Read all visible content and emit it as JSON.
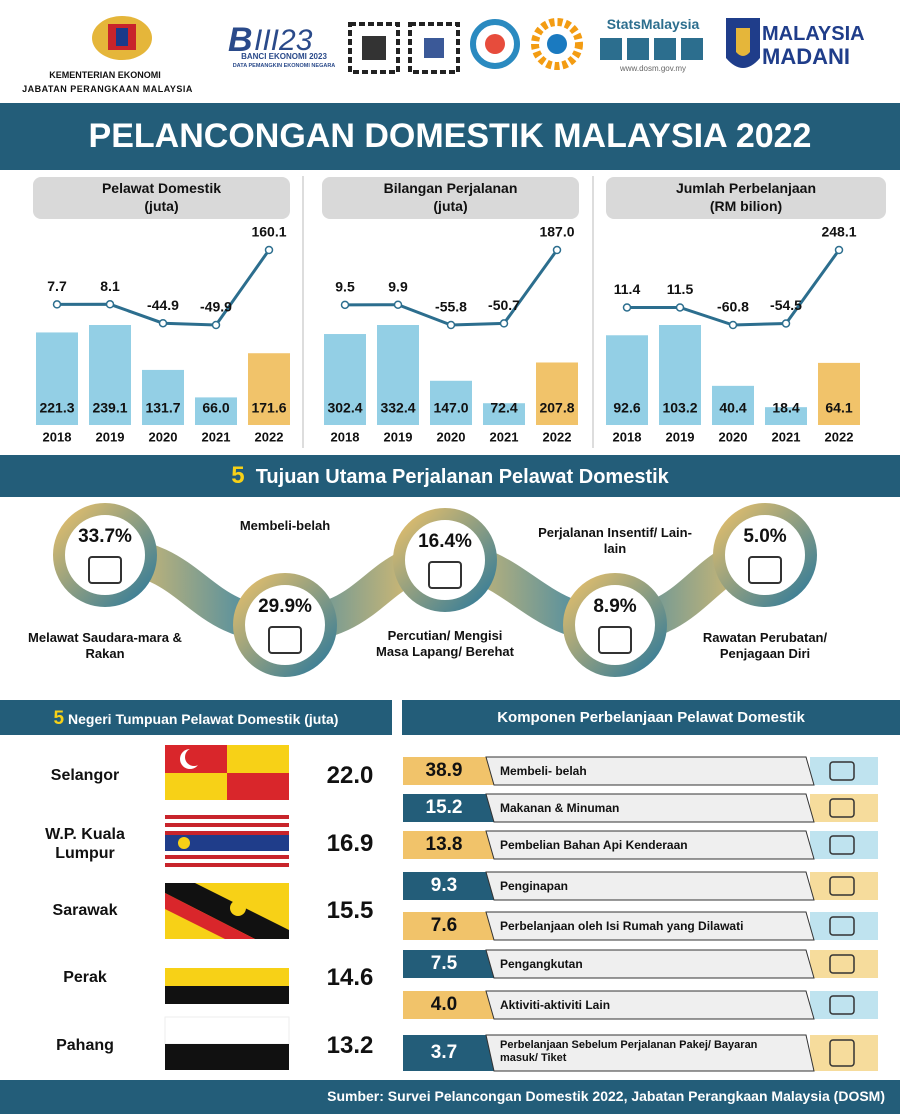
{
  "header": {
    "ministry": "KEMENTERIAN EKONOMI",
    "department": "JABATAN PERANGKAAN MALAYSIA",
    "census": "BANCI EKONOMI 2023",
    "census_tagline": "DATA PEMANGKIN EKONOMI NEGARA",
    "stats_brand": "StatsMalaysia",
    "website": "www.dosm.gov.my",
    "madani_line1": "MALAYSIA",
    "madani_line2": "MADANI"
  },
  "title": "PELANCONGAN DOMESTIK MALAYSIA 2022",
  "chart_data": [
    {
      "type": "bar_line",
      "title": "Pelawat Domestik",
      "subtitle": "(juta)",
      "categories": [
        "2018",
        "2019",
        "2020",
        "2021",
        "2022"
      ],
      "series": [
        {
          "type": "bar",
          "colors": [
            "#93cfe5",
            "#93cfe5",
            "#93cfe5",
            "#93cfe5",
            "#f1c36a"
          ],
          "values": [
            221.3,
            239.1,
            131.7,
            66.0,
            171.6
          ],
          "value_labels": [
            "221.3",
            "239.1",
            "131.7",
            "66.0",
            "171.6"
          ]
        },
        {
          "type": "line",
          "color": "#2c6e8e",
          "values": [
            7.7,
            8.1,
            -44.9,
            -49.9,
            160.1
          ],
          "value_labels": [
            "7.7",
            "8.1",
            "-44.9",
            "-49.9",
            "160.1"
          ]
        }
      ]
    },
    {
      "type": "bar_line",
      "title": "Bilangan Perjalanan",
      "subtitle": "(juta)",
      "categories": [
        "2018",
        "2019",
        "2020",
        "2021",
        "2022"
      ],
      "series": [
        {
          "type": "bar",
          "colors": [
            "#93cfe5",
            "#93cfe5",
            "#93cfe5",
            "#93cfe5",
            "#f1c36a"
          ],
          "values": [
            302.4,
            332.4,
            147.0,
            72.4,
            207.8
          ],
          "value_labels": [
            "302.4",
            "332.4",
            "147.0",
            "72.4",
            "207.8"
          ]
        },
        {
          "type": "line",
          "color": "#2c6e8e",
          "values": [
            9.5,
            9.9,
            -55.8,
            -50.7,
            187.0
          ],
          "value_labels": [
            "9.5",
            "9.9",
            "-55.8",
            "-50.7",
            "187.0"
          ]
        }
      ]
    },
    {
      "type": "bar_line",
      "title": "Jumlah Perbelanjaan",
      "subtitle": "(RM bilion)",
      "categories": [
        "2018",
        "2019",
        "2020",
        "2021",
        "2022"
      ],
      "series": [
        {
          "type": "bar",
          "colors": [
            "#93cfe5",
            "#93cfe5",
            "#93cfe5",
            "#93cfe5",
            "#f1c36a"
          ],
          "values": [
            92.6,
            103.2,
            40.4,
            18.4,
            64.1
          ],
          "value_labels": [
            "92.6",
            "103.2",
            "40.4",
            "18.4",
            "64.1"
          ]
        },
        {
          "type": "line",
          "color": "#2c6e8e",
          "values": [
            11.4,
            11.5,
            -60.8,
            -54.5,
            248.1
          ],
          "value_labels": [
            "11.4",
            "11.5",
            "-60.8",
            "-54.5",
            "248.1"
          ]
        }
      ]
    }
  ],
  "purposes": {
    "number": "5",
    "title": "Tujuan Utama Perjalanan Pelawat Domestik",
    "items": [
      {
        "percent": "33.7%",
        "label": "Melawat Saudara-mara & Rakan"
      },
      {
        "percent": "29.9%",
        "label": "Membeli-belah"
      },
      {
        "percent": "16.4%",
        "label": "Percutian/ Mengisi Masa Lapang/ Berehat"
      },
      {
        "percent": "8.9%",
        "label": "Perjalanan Insentif/ Lain-lain"
      },
      {
        "percent": "5.0%",
        "label": "Rawatan Perubatan/ Penjagaan Diri"
      }
    ]
  },
  "states": {
    "number": "5",
    "title": "Negeri Tumpuan Pelawat Domestik (juta)",
    "rows": [
      {
        "name": "Selangor",
        "value": "22.0"
      },
      {
        "name": "W.P. Kuala Lumpur",
        "value": "16.9"
      },
      {
        "name": "Sarawak",
        "value": "15.5"
      },
      {
        "name": "Perak",
        "value": "14.6"
      },
      {
        "name": "Pahang",
        "value": "13.2"
      }
    ]
  },
  "components": {
    "title": "Komponen Perbelanjaan Pelawat Domestik",
    "rows": [
      {
        "value": "38.9",
        "label": "Membeli- belah"
      },
      {
        "value": "15.2",
        "label": "Makanan & Minuman"
      },
      {
        "value": "13.8",
        "label": "Pembelian Bahan Api Kenderaan"
      },
      {
        "value": "9.3",
        "label": "Penginapan"
      },
      {
        "value": "7.6",
        "label": "Perbelanjaan oleh Isi Rumah yang Dilawati"
      },
      {
        "value": "7.5",
        "label": "Pengangkutan"
      },
      {
        "value": "4.0",
        "label": "Aktiviti-aktiviti Lain"
      },
      {
        "value": "3.7",
        "label": "Perbelanjaan Sebelum Perjalanan Pakej/ Bayaran masuk/ Tiket"
      }
    ]
  },
  "source": "Sumber: Survei Pelancongan Domestik 2022, Jabatan Perangkaan Malaysia (DOSM)"
}
